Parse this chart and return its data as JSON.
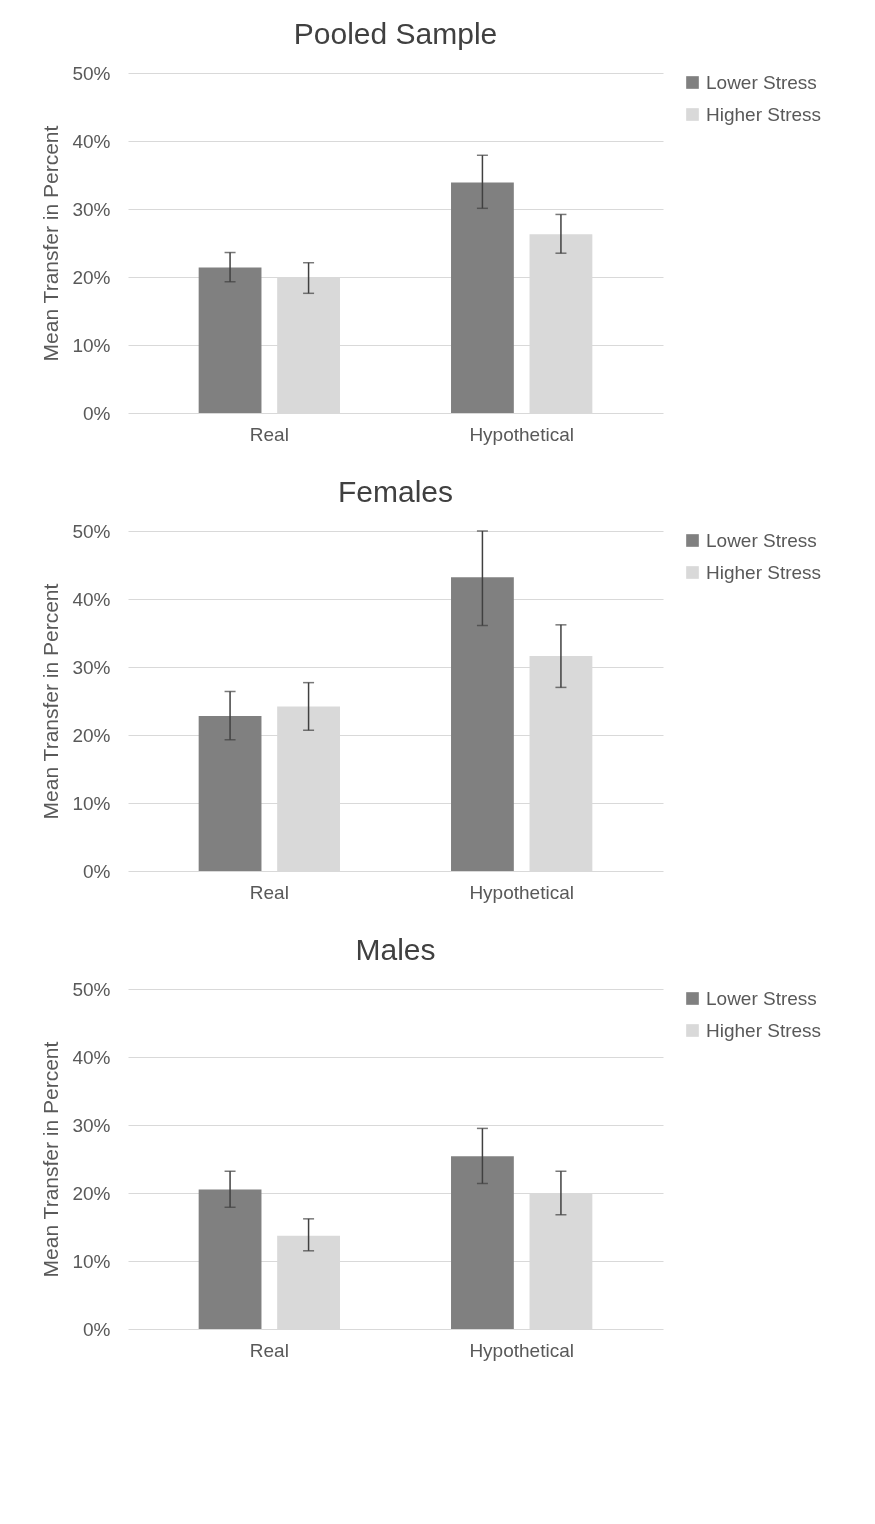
{
  "chart_data": [
    {
      "type": "bar",
      "title": "Pooled Sample",
      "ylabel": "Mean Transfer in Percent",
      "categories": [
        "Real",
        "Hypothetical"
      ],
      "ylim": [
        0,
        50
      ],
      "yticks": [
        {
          "value": 0,
          "label": "0%"
        },
        {
          "value": 10,
          "label": "10%"
        },
        {
          "value": 20,
          "label": "20%"
        },
        {
          "value": 30,
          "label": "30%"
        },
        {
          "value": 40,
          "label": "40%"
        },
        {
          "value": 50,
          "label": "50%"
        }
      ],
      "grid": "y",
      "legend": "right",
      "series": [
        {
          "name": "Lower Stress",
          "color": "#808080",
          "values": [
            21.4,
            33.9
          ],
          "errors": [
            [
              19.3,
              23.6
            ],
            [
              30.1,
              37.9
            ]
          ]
        },
        {
          "name": "Higher Stress",
          "color": "#d9d9d9",
          "values": [
            19.9,
            26.3
          ],
          "errors": [
            [
              17.6,
              22.1
            ],
            [
              23.5,
              29.2
            ]
          ]
        }
      ]
    },
    {
      "type": "bar",
      "title": "Females",
      "ylabel": "Mean Transfer in Percent",
      "categories": [
        "Real",
        "Hypothetical"
      ],
      "ylim": [
        0,
        50
      ],
      "yticks": [
        {
          "value": 0,
          "label": "0%"
        },
        {
          "value": 10,
          "label": "10%"
        },
        {
          "value": 20,
          "label": "20%"
        },
        {
          "value": 30,
          "label": "30%"
        },
        {
          "value": 40,
          "label": "40%"
        },
        {
          "value": 50,
          "label": "50%"
        }
      ],
      "grid": "y",
      "legend": "right",
      "series": [
        {
          "name": "Lower Stress",
          "color": "#808080",
          "values": [
            22.8,
            43.2
          ],
          "errors": [
            [
              19.3,
              26.4
            ],
            [
              36.1,
              50.0
            ]
          ]
        },
        {
          "name": "Higher Stress",
          "color": "#d9d9d9",
          "values": [
            24.2,
            31.6
          ],
          "errors": [
            [
              20.7,
              27.7
            ],
            [
              27.0,
              36.2
            ]
          ]
        }
      ]
    },
    {
      "type": "bar",
      "title": "Males",
      "ylabel": "Mean Transfer in Percent",
      "categories": [
        "Real",
        "Hypothetical"
      ],
      "ylim": [
        0,
        50
      ],
      "yticks": [
        {
          "value": 0,
          "label": "0%"
        },
        {
          "value": 10,
          "label": "10%"
        },
        {
          "value": 20,
          "label": "20%"
        },
        {
          "value": 30,
          "label": "30%"
        },
        {
          "value": 40,
          "label": "40%"
        },
        {
          "value": 50,
          "label": "50%"
        }
      ],
      "grid": "y",
      "legend": "right",
      "series": [
        {
          "name": "Lower Stress",
          "color": "#808080",
          "values": [
            20.5,
            25.4
          ],
          "errors": [
            [
              17.9,
              23.2
            ],
            [
              21.4,
              29.5
            ]
          ]
        },
        {
          "name": "Higher Stress",
          "color": "#d9d9d9",
          "values": [
            13.7,
            20.0
          ],
          "errors": [
            [
              11.5,
              16.2
            ],
            [
              16.8,
              23.2
            ]
          ]
        }
      ]
    }
  ]
}
